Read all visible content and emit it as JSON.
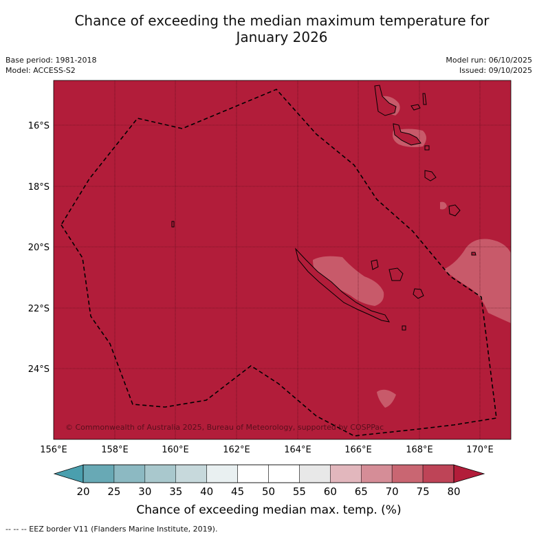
{
  "header": {
    "title_line1": "Chance of exceeding the median maximum temperature for",
    "title_line2": "January 2026",
    "base_period": "Base period: 1981-2018",
    "model": "Model: ACCESS-S2",
    "model_run": "Model run: 06/10/2025",
    "issued": "Issued: 09/10/2025"
  },
  "map": {
    "lat_labels": [
      "16°S",
      "18°S",
      "20°S",
      "22°S",
      "24°S"
    ],
    "lon_labels": [
      "156°E",
      "158°E",
      "160°E",
      "162°E",
      "164°E",
      "166°E",
      "168°E",
      "170°E"
    ],
    "copyright": "© Commonwealth of Australia 2025, Bureau of Meteorology, supported by COSPPac",
    "background_color": "#b21d3a",
    "highlight_color": "#c85a6a"
  },
  "colorbar": {
    "ticks": [
      "20",
      "25",
      "30",
      "35",
      "40",
      "45",
      "50",
      "55",
      "60",
      "65",
      "70",
      "75",
      "80"
    ],
    "colors": [
      "#68a9b5",
      "#8cb9c2",
      "#a9c8cd",
      "#c7d9dc",
      "#e9f0f1",
      "#ffffff",
      "#ffffff",
      "#e8e8e8",
      "#e2b7bd",
      "#d58d97",
      "#c96672",
      "#be4457"
    ],
    "low_color": "#4a9fae",
    "high_color": "#b21d3a",
    "title": "Chance of exceeding median max. temp. (%)"
  },
  "legend": {
    "eez_label": "--  --  -- EEZ border V11 (Flanders Marine Institute, 2019)."
  }
}
